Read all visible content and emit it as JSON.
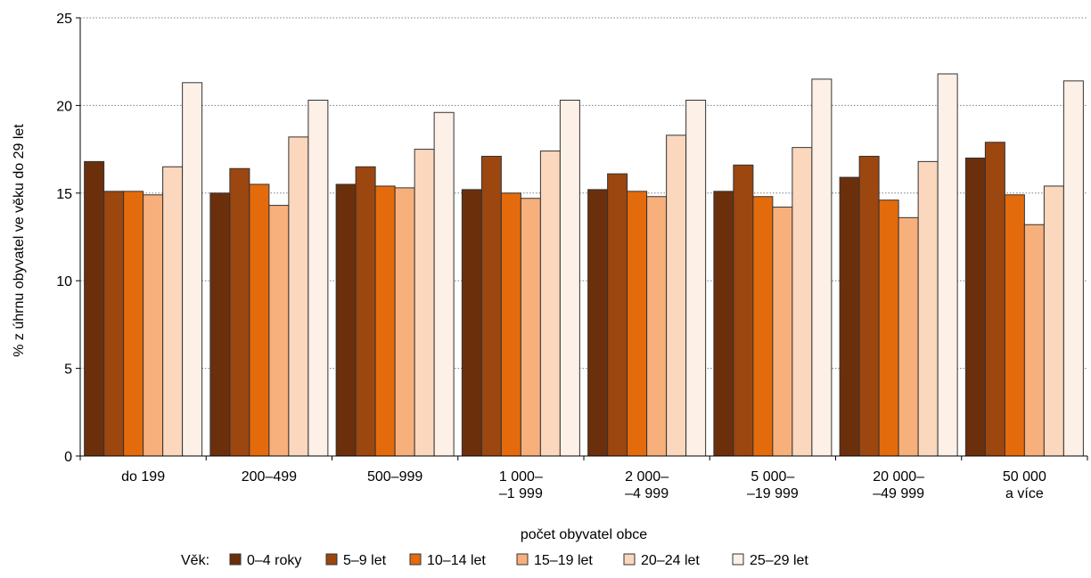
{
  "chart_data": {
    "type": "bar",
    "ylabel": "% z úhrnu obyvatel ve věku do 29 let",
    "xlabel": "počet obyvatel obce",
    "ylim": [
      0,
      25
    ],
    "yticks": [
      0,
      5,
      10,
      15,
      20,
      25
    ],
    "grid": "horizontal dotted",
    "legend_title": "Věk:",
    "legend_placement": "bottom",
    "categories": [
      [
        "do 199"
      ],
      [
        "200–499"
      ],
      [
        "500–999"
      ],
      [
        "1 000–",
        "–1 999"
      ],
      [
        "2 000–",
        "–4 999"
      ],
      [
        "5 000–",
        "–19 999"
      ],
      [
        "20 000–",
        "–49 999"
      ],
      [
        "50 000",
        "a více"
      ]
    ],
    "series": [
      {
        "name": "0–4 roky",
        "color": "#6b2f0b",
        "values": [
          16.8,
          15.0,
          15.5,
          15.2,
          15.2,
          15.1,
          15.9,
          17.0
        ]
      },
      {
        "name": "5–9 let",
        "color": "#9c4610",
        "values": [
          15.1,
          16.4,
          16.5,
          17.1,
          16.1,
          16.6,
          17.1,
          17.9
        ]
      },
      {
        "name": "10–14 let",
        "color": "#e46b0c",
        "values": [
          15.1,
          15.5,
          15.4,
          15.0,
          15.1,
          14.8,
          14.6,
          14.9
        ]
      },
      {
        "name": "15–19 let",
        "color": "#f7b07c",
        "values": [
          14.9,
          14.3,
          15.3,
          14.7,
          14.8,
          14.2,
          13.6,
          13.2
        ]
      },
      {
        "name": "20–24 let",
        "color": "#fad7bd",
        "values": [
          16.5,
          18.2,
          17.5,
          17.4,
          18.3,
          17.6,
          16.8,
          15.4
        ]
      },
      {
        "name": "25–29 let",
        "color": "#fdf0e6",
        "values": [
          21.3,
          20.3,
          19.6,
          20.3,
          20.3,
          21.5,
          21.8,
          21.4
        ]
      }
    ]
  }
}
